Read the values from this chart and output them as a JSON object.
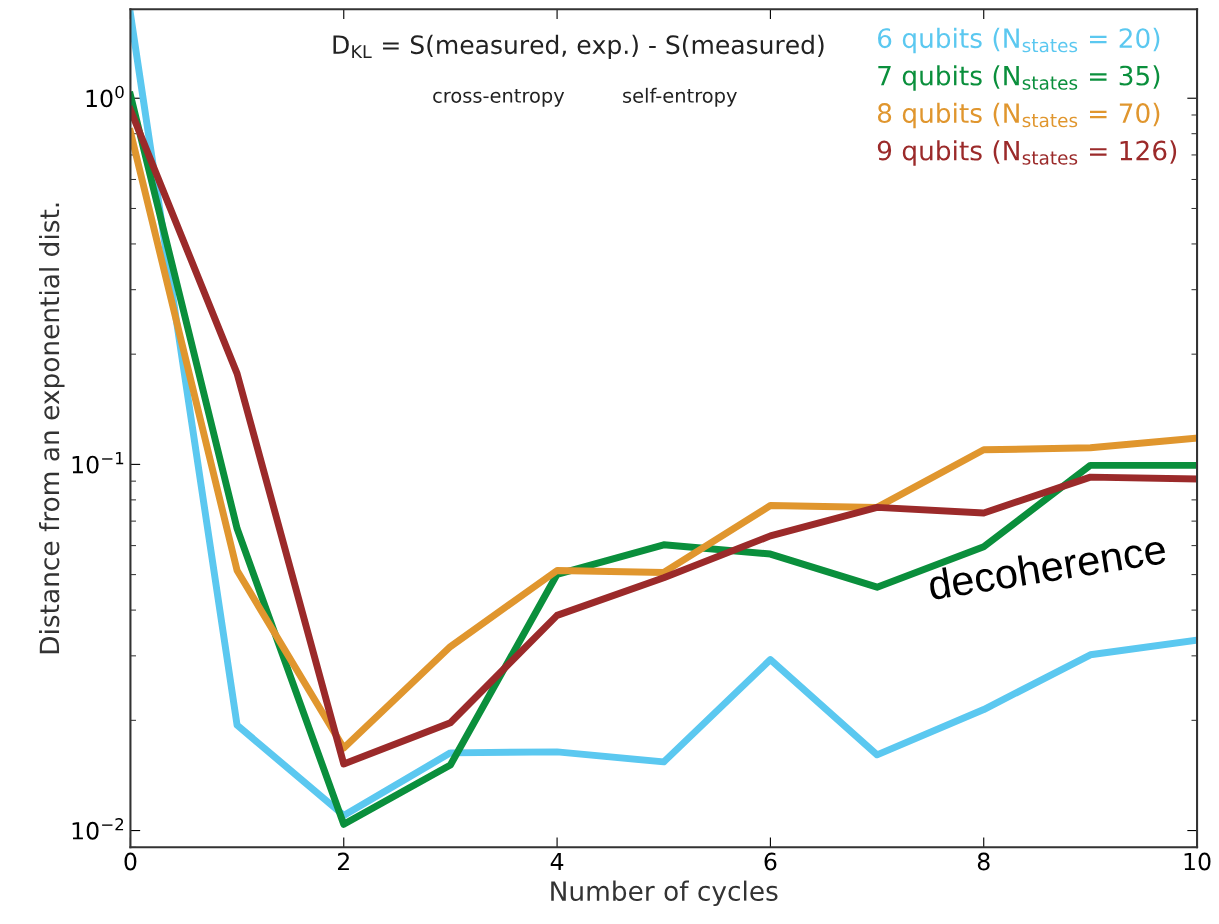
{
  "chart_data": {
    "type": "line",
    "xlabel": "Number of cycles",
    "ylabel": "Distance from an exponential dist.",
    "x": [
      0,
      1,
      2,
      3,
      4,
      5,
      6,
      7,
      8,
      9,
      10
    ],
    "series": [
      {
        "name": "6 qubits (N$_{states}$ = 20)",
        "color": "#5bc8f0",
        "values": [
          1.7,
          0.0194,
          0.011,
          0.0163,
          0.0164,
          0.0154,
          0.0293,
          0.0161,
          0.0214,
          0.0302,
          0.0331
        ]
      },
      {
        "name": "7 qubits (N$_{states}$ = 35)",
        "color": "#0a8f3c",
        "values": [
          1.02,
          0.0668,
          0.0104,
          0.0151,
          0.0501,
          0.0603,
          0.0569,
          0.0462,
          0.0596,
          0.0994,
          0.0994
        ]
      },
      {
        "name": "8 qubits (N$_{states}$ = 70)",
        "color": "#e0962e",
        "values": [
          0.81,
          0.0513,
          0.0168,
          0.0318,
          0.0513,
          0.0507,
          0.0772,
          0.0763,
          0.1096,
          0.111,
          0.118
        ]
      },
      {
        "name": "9 qubits (N$_{states}$ = 126)",
        "color": "#9b2a2a",
        "values": [
          0.93,
          0.177,
          0.0152,
          0.0197,
          0.0387,
          0.049,
          0.0638,
          0.0763,
          0.0737,
          0.0923,
          0.0912
        ]
      }
    ],
    "annotations": [
      "D$_{KL}$ = S(measured, exp.) - S(measured)",
      "cross-entropy",
      "self-entropy",
      "decoherence"
    ],
    "log": "y",
    "xlim": [
      0,
      10
    ],
    "ylim": [
      0.009,
      1.75
    ],
    "xticks": [
      0,
      2,
      4,
      6,
      8,
      10
    ],
    "yticks": [
      {
        "value": 0.01,
        "label": "10$^{−2}$"
      },
      {
        "value": 0.1,
        "label": "10$^{−1}$"
      },
      {
        "value": 1,
        "label": "10$^{0}$"
      }
    ],
    "legend": "top right",
    "grid": false,
    "marker": "none",
    "line_style": "solid"
  }
}
